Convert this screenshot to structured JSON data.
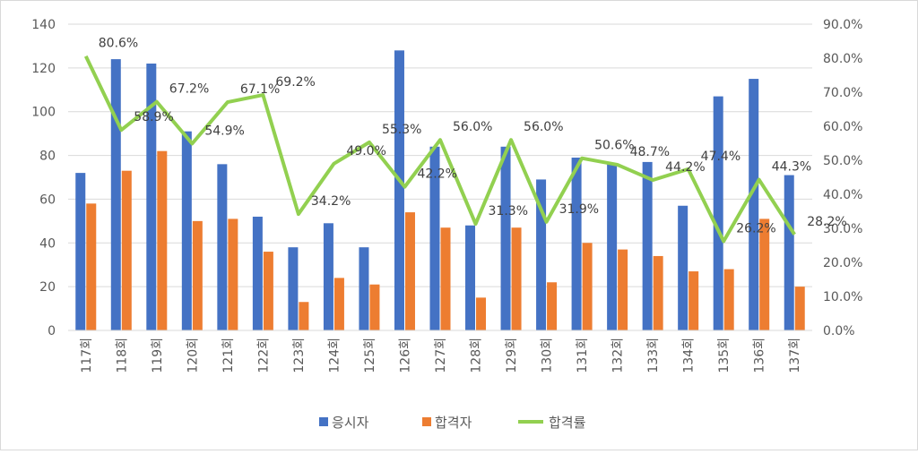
{
  "chart_data": {
    "type": "bar+line",
    "categories": [
      "117회",
      "118회",
      "119회",
      "120회",
      "121회",
      "122회",
      "123회",
      "124회",
      "125회",
      "126회",
      "127회",
      "128회",
      "129회",
      "130회",
      "131회",
      "132회",
      "133회",
      "134회",
      "135회",
      "136회",
      "137회"
    ],
    "series": [
      {
        "name": "응시자",
        "type": "bar",
        "axis": "left",
        "color": "#4472c4",
        "values": [
          72,
          124,
          122,
          91,
          76,
          52,
          38,
          49,
          38,
          128,
          84,
          48,
          84,
          69,
          79,
          76,
          77,
          57,
          107,
          115,
          71
        ]
      },
      {
        "name": "합격자",
        "type": "bar",
        "axis": "left",
        "color": "#ed7d31",
        "values": [
          58,
          73,
          82,
          50,
          51,
          36,
          13,
          24,
          21,
          54,
          47,
          15,
          47,
          22,
          40,
          37,
          34,
          27,
          28,
          51,
          20
        ]
      },
      {
        "name": "합격률",
        "type": "line",
        "axis": "right",
        "color": "#92d050",
        "values": [
          80.6,
          58.9,
          67.2,
          54.9,
          67.1,
          69.2,
          34.2,
          49.0,
          55.3,
          42.2,
          56.0,
          31.3,
          56.0,
          31.9,
          50.6,
          48.7,
          44.2,
          47.4,
          26.2,
          44.3,
          28.2
        ],
        "labels": [
          "80.6%",
          "58.9%",
          "67.2%",
          "54.9%",
          "67.1%",
          "69.2%",
          "34.2%",
          "49.0%",
          "55.3%",
          "42.2%",
          "56.0%",
          "31.3%",
          "56.0%",
          "31.9%",
          "50.6%",
          "48.7%",
          "44.2%",
          "47.4%",
          "26.2%",
          "44.3%",
          "28.2%"
        ]
      }
    ],
    "ylim_left": [
      0,
      140
    ],
    "yticks_left": [
      "0",
      "20",
      "40",
      "60",
      "80",
      "100",
      "120",
      "140"
    ],
    "ylim_right": [
      0,
      90
    ],
    "yticks_right": [
      "0.0%",
      "10.0%",
      "20.0%",
      "30.0%",
      "40.0%",
      "50.0%",
      "60.0%",
      "70.0%",
      "80.0%",
      "90.0%"
    ],
    "grid": true,
    "legend": "bottom"
  }
}
